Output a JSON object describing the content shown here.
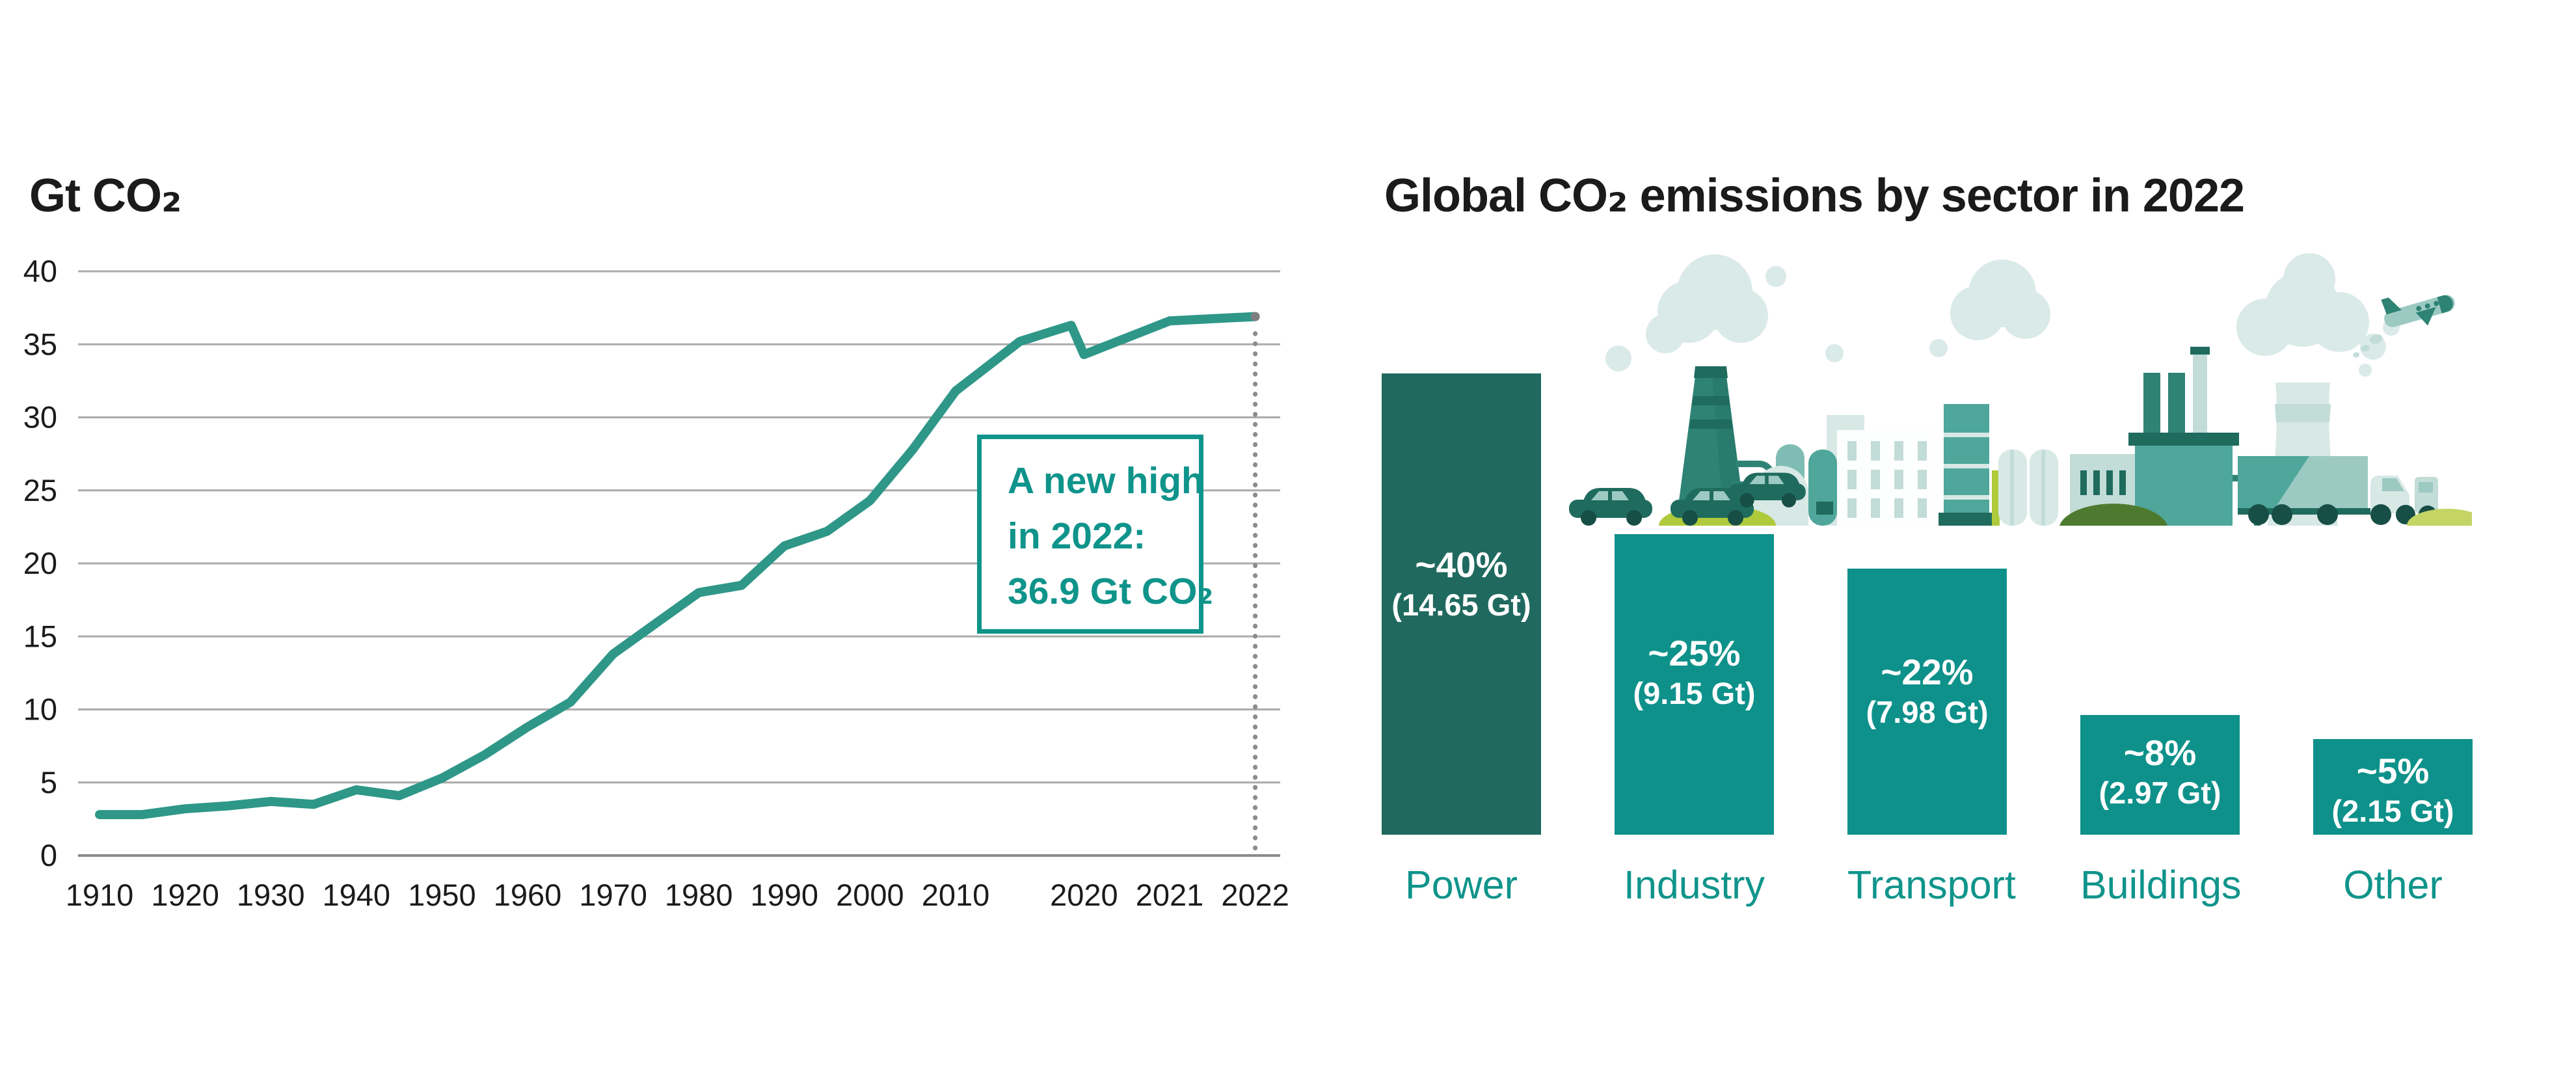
{
  "left_chart": {
    "title": "Gt CO₂",
    "annotation_lines": [
      "A new high",
      "in 2022:",
      "36.9 Gt CO₂"
    ]
  },
  "right_chart": {
    "title": "Global CO₂ emissions by sector in 2022"
  },
  "chart_data": [
    {
      "type": "line",
      "title": "Gt CO₂",
      "ylabel": "Gt CO₂",
      "ylim": [
        0,
        40
      ],
      "y_ticks": [
        0,
        5,
        10,
        15,
        20,
        25,
        30,
        35,
        40
      ],
      "x_tick_labels": [
        "1910",
        "1920",
        "1930",
        "1940",
        "1950",
        "1960",
        "1970",
        "1980",
        "1990",
        "2000",
        "2010",
        "2020",
        "2021",
        "2022"
      ],
      "x": [
        1910,
        1915,
        1920,
        1925,
        1930,
        1935,
        1940,
        1945,
        1950,
        1955,
        1960,
        1965,
        1970,
        1975,
        1980,
        1985,
        1990,
        1995,
        2000,
        2005,
        2010,
        2015,
        2019,
        2020,
        2021,
        2022
      ],
      "y": [
        2.8,
        2.8,
        3.2,
        3.4,
        3.7,
        3.5,
        4.5,
        4.1,
        5.3,
        6.9,
        8.8,
        10.5,
        13.8,
        15.9,
        18.0,
        18.5,
        21.2,
        22.2,
        24.3,
        27.8,
        31.8,
        35.2,
        36.3,
        34.3,
        36.6,
        36.9
      ],
      "annotation": "A new high in 2022: 36.9 Gt CO₂",
      "annotation_year": 2022,
      "annotation_value": 36.9,
      "line_color": "#2e9788",
      "grid": "horizontal",
      "legend": "none"
    },
    {
      "type": "bar",
      "title": "Global CO₂ emissions by sector in 2022",
      "categories": [
        "Power",
        "Industry",
        "Transport",
        "Buildings",
        "Other"
      ],
      "values_pct": [
        40,
        25,
        22,
        8,
        5
      ],
      "values_gt": [
        14.65,
        9.15,
        7.98,
        2.97,
        2.15
      ],
      "pct_labels": [
        "~40%",
        "~25%",
        "~22%",
        "~8%",
        "~5%"
      ],
      "gt_labels": [
        "(14.65 Gt)",
        "(9.15 Gt)",
        "(7.98 Gt)",
        "(2.97 Gt)",
        "(2.15 Gt)"
      ],
      "bar_colors": [
        "#20695e",
        "#0e918a",
        "#0e918a",
        "#0e918a",
        "#0e918a"
      ],
      "label_color": "#0f948b",
      "value_text_color": "#ffffff"
    }
  ],
  "colors": {
    "accent_teal": "#0f948b",
    "dark_teal_bar": "#20695e",
    "medium_teal_bar": "#0e918a",
    "line": "#2e9788",
    "title_text": "#1b1b1b",
    "gridline": "#ababab",
    "dotted_guide": "#8c8c8c",
    "illustration_cloud": "#daeae8",
    "illustration_pale": "#d7e8e5",
    "illustration_mid": "#4fa69b",
    "illustration_dark": "#1f6b5e",
    "illustration_lime": "#afca3b",
    "illustration_olive": "#4e7a2f"
  },
  "illustration": {
    "elements": [
      "smoke-cloud",
      "power-plant-chimney",
      "storage-tanks",
      "office-building",
      "industry-tower",
      "silos",
      "factory",
      "cooling-tower",
      "car",
      "truck",
      "airplane",
      "bush",
      "hill"
    ]
  }
}
